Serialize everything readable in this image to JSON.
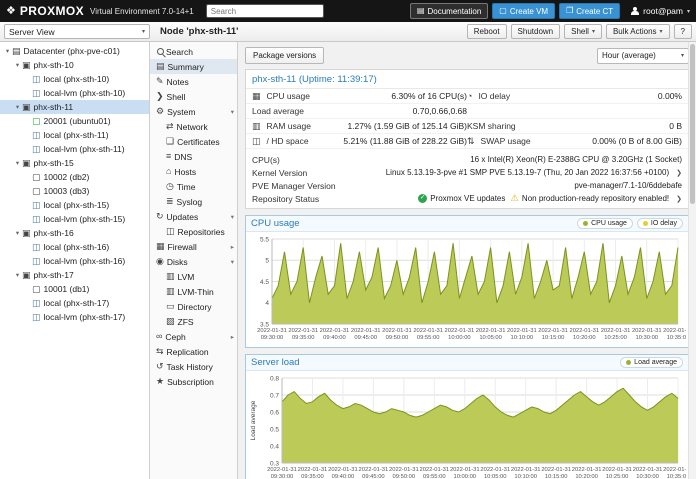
{
  "header": {
    "brand": "PROXMOX",
    "env": "Virtual Environment 7.0-14+1",
    "search_placeholder": "Search",
    "documentation": "Documentation",
    "create_vm": "Create VM",
    "create_ct": "Create CT",
    "user": "root@pam"
  },
  "toolbar": {
    "view": "Server View",
    "node_title": "Node 'phx-sth-11'",
    "reboot": "Reboot",
    "shutdown": "Shutdown",
    "shell": "Shell",
    "bulk_actions": "Bulk Actions",
    "help": "?"
  },
  "tree": {
    "root": {
      "label": "Datacenter (phx-pve-c01)",
      "icon": "server"
    },
    "nodes": [
      {
        "label": "phx-sth-10",
        "icon": "node",
        "children": [
          {
            "label": "local (phx-sth-10)",
            "icon": "storage"
          },
          {
            "label": "local-lvm (phx-sth-10)",
            "icon": "storage"
          }
        ]
      },
      {
        "label": "phx-sth-11",
        "icon": "node",
        "selected": true,
        "children": [
          {
            "label": "20001 (ubuntu01)",
            "icon": "vm",
            "running": true
          },
          {
            "label": "local (phx-sth-11)",
            "icon": "storage"
          },
          {
            "label": "local-lvm (phx-sth-11)",
            "icon": "storage"
          }
        ]
      },
      {
        "label": "phx-sth-15",
        "icon": "node",
        "children": [
          {
            "label": "10002 (db2)",
            "icon": "vm"
          },
          {
            "label": "10003 (db3)",
            "icon": "vm"
          },
          {
            "label": "local (phx-sth-15)",
            "icon": "storage"
          },
          {
            "label": "local-lvm (phx-sth-15)",
            "icon": "storage"
          }
        ]
      },
      {
        "label": "phx-sth-16",
        "icon": "node",
        "children": [
          {
            "label": "local (phx-sth-16)",
            "icon": "storage"
          },
          {
            "label": "local-lvm (phx-sth-16)",
            "icon": "storage"
          }
        ]
      },
      {
        "label": "phx-sth-17",
        "icon": "node",
        "children": [
          {
            "label": "10001 (db1)",
            "icon": "vm"
          },
          {
            "label": "local (phx-sth-17)",
            "icon": "storage"
          },
          {
            "label": "local-lvm (phx-sth-17)",
            "icon": "storage"
          }
        ]
      }
    ]
  },
  "node_menu": [
    {
      "label": "Search",
      "icon": "search"
    },
    {
      "label": "Summary",
      "icon": "summary",
      "selected": true
    },
    {
      "label": "Notes",
      "icon": "notes"
    },
    {
      "label": "Shell",
      "icon": "shell"
    },
    {
      "label": "System",
      "icon": "system",
      "expandable": true,
      "expanded": true,
      "children": [
        {
          "label": "Network",
          "icon": "network"
        },
        {
          "label": "Certificates",
          "icon": "certificates"
        },
        {
          "label": "DNS",
          "icon": "dns"
        },
        {
          "label": "Hosts",
          "icon": "hosts"
        },
        {
          "label": "Time",
          "icon": "time"
        },
        {
          "label": "Syslog",
          "icon": "syslog"
        }
      ]
    },
    {
      "label": "Updates",
      "icon": "updates",
      "expandable": true,
      "expanded": true,
      "children": [
        {
          "label": "Repositories",
          "icon": "repositories"
        }
      ]
    },
    {
      "label": "Firewall",
      "icon": "firewall",
      "expandable": true,
      "expanded": false
    },
    {
      "label": "Disks",
      "icon": "disks",
      "expandable": true,
      "expanded": true,
      "children": [
        {
          "label": "LVM",
          "icon": "lvm"
        },
        {
          "label": "LVM-Thin",
          "icon": "lvmthin"
        },
        {
          "label": "Directory",
          "icon": "directory"
        },
        {
          "label": "ZFS",
          "icon": "zfs"
        }
      ]
    },
    {
      "label": "Ceph",
      "icon": "ceph",
      "expandable": true,
      "expanded": false
    },
    {
      "label": "Replication",
      "icon": "replication"
    },
    {
      "label": "Task History",
      "icon": "history"
    },
    {
      "label": "Subscription",
      "icon": "subscription"
    }
  ],
  "content": {
    "package_versions": "Package versions",
    "timeframe": "Hour (average)",
    "panel_title": "phx-sth-11 (Uptime: 11:39:17)"
  },
  "summary": {
    "stats": [
      {
        "icon": "cpu",
        "label": "CPU usage",
        "value": "6.30% of 16 CPU(s)",
        "icon2": "io",
        "label2": "IO delay",
        "value2": "0.00%"
      },
      {
        "label": "Load average",
        "value": "0.70,0.66,0.68"
      },
      {
        "icon": "ram",
        "label": "RAM usage",
        "value": "1.27% (1.59 GiB of 125.14 GiB)",
        "label2": "KSM sharing",
        "value2": "0 B"
      },
      {
        "icon": "hd",
        "label": "/ HD space",
        "value": "5.21% (11.88 GiB of 228.22 GiB)",
        "icon2": "swap",
        "label2": "SWAP usage",
        "value2": "0.00% (0 B of 8.00 GiB)"
      }
    ],
    "info": [
      {
        "label": "CPU(s)",
        "value": "16 x Intel(R) Xeon(R) E-2388G CPU @ 3.20GHz (1 Socket)"
      },
      {
        "label": "Kernel Version",
        "value": "Linux 5.13.19-3-pve #1 SMP PVE 5.13.19-7 (Thu, 20 Jan 2022 16:37:56 +0100)",
        "chevron": true
      },
      {
        "label": "PVE Manager Version",
        "value": "pve-manager/7.1-10/6ddebafe"
      },
      {
        "label": "Repository Status",
        "chevron": true,
        "badges": [
          {
            "icon": "check",
            "text": "Proxmox VE updates"
          },
          {
            "icon": "warning",
            "text": "Non production-ready repository enabled!"
          }
        ]
      }
    ]
  },
  "chart_data": [
    {
      "type": "area",
      "name": "cpu-usage",
      "title": "CPU usage",
      "legend": [
        {
          "label": "CPU usage",
          "color": "#9bb32d"
        },
        {
          "label": "IO delay",
          "color": "#e3cf2e"
        }
      ],
      "ylim": [
        3.5,
        5.5
      ],
      "yticks": [
        3.5,
        4,
        4.5,
        5,
        5.5
      ],
      "x_date": "2022-01-31",
      "x_ticks": [
        "09:30:00",
        "09:35:00",
        "09:40:00",
        "09:45:00",
        "09:50:00",
        "09:55:00",
        "10:00:00",
        "10:05:00",
        "10:10:00",
        "10:15:00",
        "10:20:00",
        "10:25:00",
        "10:30:00",
        "10:35:00"
      ],
      "series": [
        {
          "name": "CPU usage",
          "color": "#7d921e",
          "fill": "#bcca57",
          "values": [
            4.1,
            4.4,
            5.2,
            4.2,
            4.5,
            5.3,
            4.0,
            4.6,
            5.1,
            4.2,
            4.4,
            5.4,
            4.1,
            4.5,
            5.2,
            4.3,
            4.6,
            5.3,
            4.1,
            4.4,
            5.0,
            4.2,
            4.6,
            5.3,
            4.0,
            4.5,
            5.2,
            4.2,
            4.4,
            5.4,
            4.1,
            4.6,
            5.1,
            4.2,
            4.5,
            5.3,
            4.0,
            4.4,
            5.2,
            4.2,
            4.6,
            5.4,
            4.1,
            4.5,
            5.0,
            4.3,
            4.4,
            5.3,
            4.1,
            4.6,
            5.2,
            4.2,
            4.5,
            5.4,
            4.0,
            4.4,
            5.1,
            4.2,
            4.6,
            5.3,
            4.1,
            4.5,
            5.2,
            4.2,
            4.4,
            5.3
          ]
        },
        {
          "name": "IO delay",
          "color": "#e3cf2e",
          "fill": "none",
          "values": [
            0,
            0
          ]
        }
      ]
    },
    {
      "type": "area",
      "name": "server-load",
      "title": "Server load",
      "ylabel": "Load average",
      "legend": [
        {
          "label": "Load average",
          "color": "#9bb32d"
        }
      ],
      "ylim": [
        0.3,
        0.8
      ],
      "yticks": [
        0.3,
        0.4,
        0.5,
        0.6,
        0.7,
        0.8
      ],
      "x_date": "2022-01-31",
      "x_ticks": [
        "09:30:00",
        "09:35:00",
        "09:40:00",
        "09:45:00",
        "09:50:00",
        "09:55:00",
        "10:00:00",
        "10:05:00",
        "10:10:00",
        "10:15:00",
        "10:20:00",
        "10:25:00",
        "10:30:00",
        "10:35:00"
      ],
      "series": [
        {
          "name": "Load average",
          "color": "#7d921e",
          "fill": "#bcca57",
          "values": [
            0.66,
            0.7,
            0.72,
            0.68,
            0.65,
            0.66,
            0.69,
            0.71,
            0.67,
            0.64,
            0.62,
            0.63,
            0.65,
            0.64,
            0.62,
            0.6,
            0.59,
            0.6,
            0.62,
            0.61,
            0.6,
            0.58,
            0.57,
            0.58,
            0.6,
            0.62,
            0.64,
            0.63,
            0.61,
            0.6,
            0.62,
            0.65,
            0.68,
            0.7,
            0.67,
            0.63,
            0.6,
            0.58,
            0.57,
            0.59,
            0.61,
            0.63,
            0.62,
            0.6,
            0.59,
            0.61,
            0.64,
            0.67,
            0.7,
            0.72,
            0.69,
            0.66,
            0.64,
            0.66,
            0.69,
            0.72,
            0.74,
            0.7,
            0.66,
            0.63,
            0.61,
            0.63,
            0.66,
            0.69,
            0.71,
            0.68
          ]
        }
      ]
    }
  ]
}
